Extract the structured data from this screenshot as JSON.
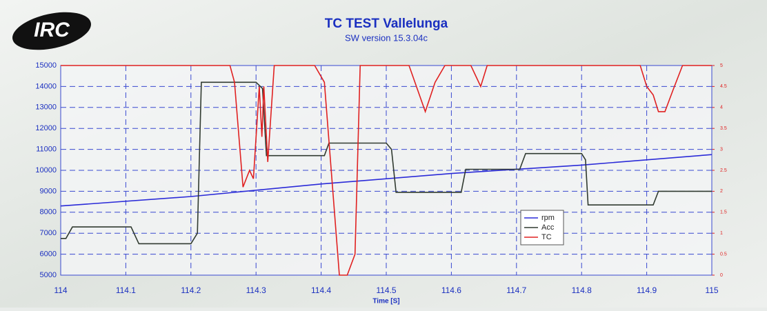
{
  "logo": "IRC",
  "chart_data": {
    "type": "line",
    "title": "TC TEST Vallelunga",
    "subtitle": "SW version 15.3.04c",
    "xlabel": "Time [S]",
    "xlim": [
      114,
      115
    ],
    "xticks": [
      114,
      114.1,
      114.2,
      114.3,
      114.4,
      114.5,
      114.6,
      114.7,
      114.8,
      114.9,
      115
    ],
    "ylim": [
      5000,
      15000
    ],
    "yticks": [
      5000,
      6000,
      7000,
      8000,
      9000,
      10000,
      11000,
      12000,
      13000,
      14000,
      15000
    ],
    "y2lim": [
      0,
      5
    ],
    "y2ticks": [
      0,
      0.5,
      1,
      1.5,
      2,
      2.5,
      3,
      3.5,
      4,
      4.5,
      5
    ],
    "grid": true,
    "legend": "lower right",
    "series": [
      {
        "name": "rpm",
        "color": "#2a2ad8",
        "x": [
          114,
          114.2,
          114.4,
          114.6,
          114.8,
          115
        ],
        "values": [
          8300,
          8750,
          9350,
          9850,
          10250,
          10750
        ]
      },
      {
        "name": "Acc",
        "color": "#303a30",
        "x": [
          114,
          114.008,
          114.018,
          114.108,
          114.12,
          114.2,
          114.21,
          114.216,
          114.3,
          114.31,
          114.316,
          114.405,
          114.412,
          114.5,
          114.508,
          114.515,
          114.615,
          114.622,
          114.705,
          114.714,
          114.8,
          114.806,
          114.81,
          114.91,
          114.918,
          115
        ],
        "values": [
          6750,
          6750,
          7300,
          7300,
          6500,
          6500,
          7000,
          14200,
          14200,
          13900,
          10700,
          10700,
          11300,
          11300,
          11000,
          8950,
          8950,
          10050,
          10050,
          10800,
          10800,
          10500,
          8350,
          8350,
          9000,
          9000
        ]
      },
      {
        "name": "TC",
        "color": "#e02020",
        "axis": "y2",
        "x": [
          114,
          114.26,
          114.267,
          114.28,
          114.29,
          114.296,
          114.305,
          114.309,
          114.312,
          114.318,
          114.328,
          114.39,
          114.405,
          114.428,
          114.44,
          114.452,
          114.46,
          114.535,
          114.56,
          114.575,
          114.59,
          114.63,
          114.645,
          114.655,
          114.89,
          114.9,
          114.91,
          114.918,
          114.928,
          114.94,
          114.955,
          115
        ],
        "values": [
          5,
          5,
          4.6,
          2.1,
          2.5,
          2.3,
          4.5,
          3.3,
          4.5,
          2.7,
          5,
          5,
          4.6,
          0,
          0,
          0.5,
          5,
          5,
          3.9,
          4.6,
          5,
          5,
          4.5,
          5,
          5,
          4.5,
          4.3,
          3.9,
          3.9,
          4.4,
          5,
          5
        ]
      }
    ]
  }
}
